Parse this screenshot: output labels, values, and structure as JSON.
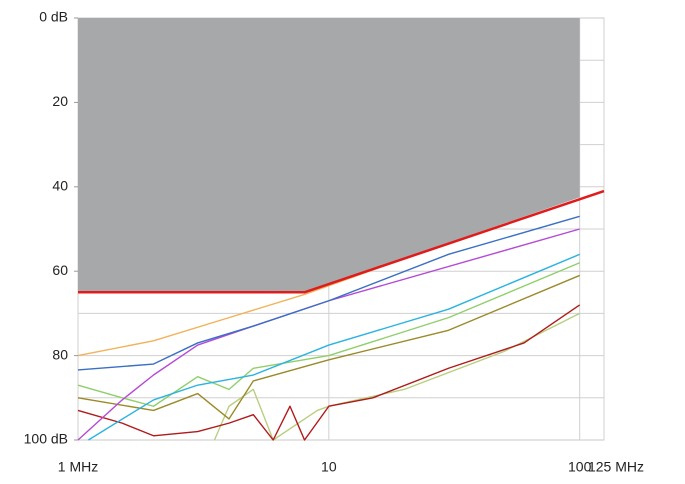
{
  "chart_data": {
    "type": "line",
    "xscale": "log",
    "xlim": [
      1,
      125
    ],
    "ylim": [
      0,
      100
    ],
    "y_inverted": true,
    "xticks": [
      {
        "value": 1,
        "label": "1 MHz"
      },
      10,
      100,
      {
        "value": 125,
        "label": "125 MHz"
      }
    ],
    "yticks": [
      {
        "value": 0,
        "label": "0 dB"
      },
      20,
      40,
      60,
      80,
      {
        "value": 100,
        "label": "100 dB"
      }
    ],
    "ygrid": [
      10,
      20,
      30,
      40,
      50,
      60,
      70,
      80,
      90
    ],
    "grid": true,
    "shaded": {
      "color": "#a7a8aa",
      "x": [
        1,
        8,
        100
      ],
      "values": [
        65,
        65,
        42.5
      ]
    },
    "series": [
      {
        "color": "#e01b1b",
        "x": [
          1,
          8,
          125
        ],
        "values": [
          65,
          65,
          41
        ]
      },
      {
        "color": "#f2b25a",
        "x": [
          1,
          2,
          4,
          8,
          20,
          50,
          100
        ],
        "values": [
          80,
          76.5,
          71,
          65.5,
          57,
          49,
          43
        ]
      },
      {
        "color": "#3a6fc4",
        "x": [
          1,
          2,
          3,
          5,
          10,
          30,
          100
        ],
        "values": [
          83.4,
          82,
          77,
          73,
          67,
          56,
          47
        ]
      },
      {
        "color": "#b44ad6",
        "x": [
          1,
          1.5,
          2,
          3,
          5,
          10,
          100
        ],
        "values": [
          100,
          90.5,
          84.6,
          77.5,
          73,
          67,
          50
        ]
      },
      {
        "color": "#2ab3e0",
        "x": [
          1.1,
          2,
          3,
          5,
          10,
          30,
          100
        ],
        "values": [
          100,
          90.5,
          87,
          84.6,
          77.5,
          69,
          56
        ]
      },
      {
        "color": "#8fcf6a",
        "x": [
          1,
          1.5,
          2,
          3,
          4,
          5,
          10,
          30,
          100
        ],
        "values": [
          87,
          90,
          92,
          85,
          88,
          83,
          80,
          71,
          58
        ]
      },
      {
        "color": "#9a8a2a",
        "x": [
          1,
          2,
          3,
          4,
          5,
          10,
          30,
          100
        ],
        "values": [
          90,
          93,
          89,
          95,
          86,
          81,
          74,
          61
        ]
      },
      {
        "color": "#b01a1a",
        "x": [
          1,
          1.5,
          2,
          3,
          4,
          5,
          6,
          7,
          8,
          10,
          15,
          30,
          60,
          100
        ],
        "values": [
          93,
          96,
          99,
          98,
          96,
          94,
          100,
          92,
          100,
          92,
          90,
          83,
          77,
          68
        ]
      },
      {
        "color": "#b8cf80",
        "x": [
          3.5,
          4,
          5,
          6,
          9,
          10,
          20,
          50,
          100
        ],
        "values": [
          100,
          92,
          88,
          100,
          93,
          92,
          88,
          79,
          70
        ]
      }
    ]
  }
}
